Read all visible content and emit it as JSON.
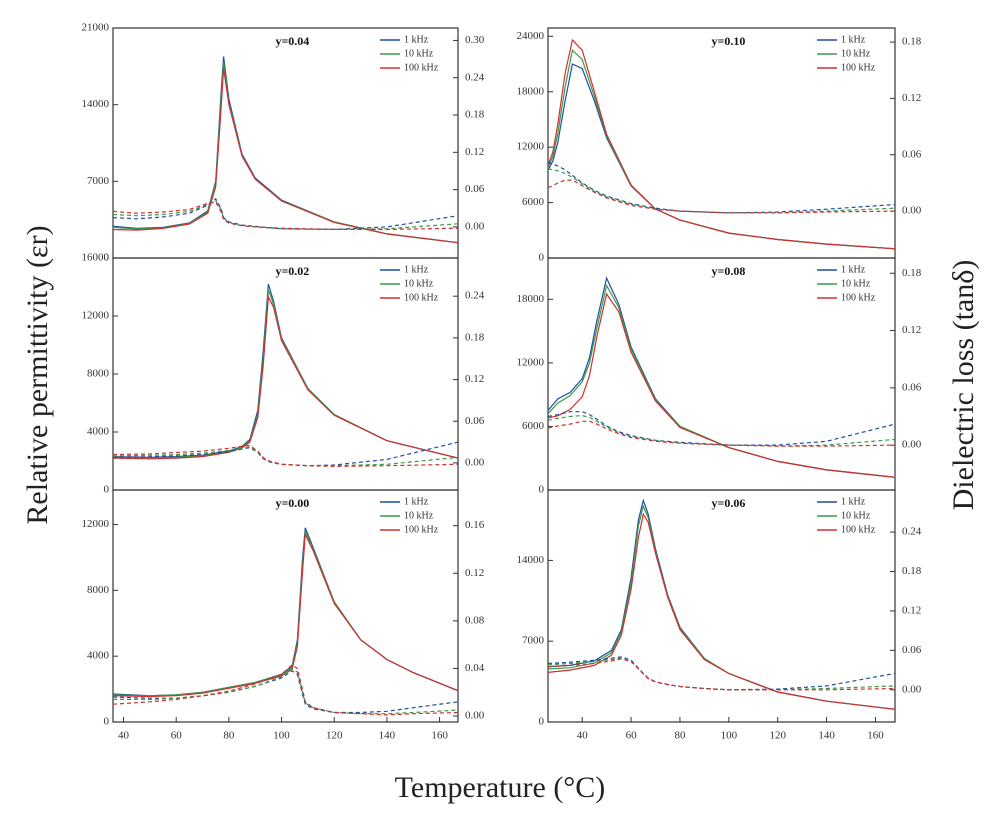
{
  "y_label": "Relative permittivity (εr)",
  "y2_label": "Dielectric loss (tanδ)",
  "x_label": "Temperature (°C)",
  "chart_data": [
    {
      "type": "line",
      "title": "y=0.04",
      "xlim": [
        36,
        167
      ],
      "ylim": [
        0,
        21000
      ],
      "yticks": [
        0,
        7000,
        14000,
        21000
      ],
      "y2lim": [
        -0.05,
        0.32
      ],
      "y2ticks": [
        {
          "value": 0,
          "label": "0.00"
        },
        0.06,
        0.12,
        0.18,
        0.24,
        {
          "value": 0.3,
          "label": "0.30"
        }
      ],
      "x": [
        36,
        45,
        55,
        65,
        72,
        75,
        77,
        78,
        80,
        85,
        90,
        100,
        120,
        140,
        167
      ],
      "series": [
        {
          "name": "1 kHz",
          "color": "#1f4fa0",
          "values": [
            2900,
            2700,
            2800,
            3200,
            4300,
            7000,
            15000,
            18400,
            14500,
            9500,
            7300,
            5300,
            3300,
            2200,
            1400
          ]
        },
        {
          "name": "10 kHz",
          "color": "#3a9a4a",
          "values": [
            2800,
            2650,
            2750,
            3150,
            4200,
            6800,
            14500,
            17900,
            14200,
            9400,
            7200,
            5250,
            3300,
            2200,
            1400
          ]
        },
        {
          "name": "100 kHz",
          "color": "#d03030",
          "values": [
            2600,
            2550,
            2700,
            3100,
            4100,
            6500,
            13500,
            17300,
            14000,
            9300,
            7200,
            5200,
            3250,
            2200,
            1400
          ]
        },
        {
          "color": "#1f4fa0",
          "axis": "y2",
          "line_style": "dashed",
          "values": [
            0.015,
            0.013,
            0.016,
            0.022,
            0.035,
            0.045,
            0.03,
            0.015,
            0.008,
            0.003,
            0.001,
            -0.003,
            -0.004,
            0.0,
            0.018
          ]
        },
        {
          "color": "#3a9a4a",
          "axis": "y2",
          "line_style": "dashed",
          "values": [
            0.02,
            0.018,
            0.02,
            0.025,
            0.036,
            0.042,
            0.028,
            0.014,
            0.007,
            0.002,
            0.0,
            -0.003,
            -0.004,
            -0.003,
            0.005
          ]
        },
        {
          "color": "#d03030",
          "axis": "y2",
          "line_style": "dashed",
          "values": [
            0.025,
            0.022,
            0.024,
            0.028,
            0.038,
            0.04,
            0.025,
            0.012,
            0.006,
            0.002,
            0.0,
            -0.002,
            -0.004,
            -0.004,
            -0.002
          ]
        }
      ]
    },
    {
      "type": "line",
      "title": "y=0.10",
      "xlim": [
        26,
        168
      ],
      "ylim": [
        0,
        24900
      ],
      "yticks": [
        0,
        6000,
        12000,
        18000,
        24000
      ],
      "y2lim": [
        -0.05,
        0.195
      ],
      "y2ticks": [
        {
          "value": 0,
          "label": "0.00"
        },
        0.06,
        0.12,
        0.18
      ],
      "x": [
        26,
        28,
        30,
        33,
        36,
        40,
        45,
        50,
        60,
        70,
        80,
        100,
        120,
        140,
        168
      ],
      "series": [
        {
          "name": "1 kHz",
          "color": "#1f4fa0",
          "values": [
            9500,
            10500,
            12500,
            17000,
            21000,
            20500,
            17000,
            13000,
            7800,
            5300,
            4100,
            2700,
            2000,
            1500,
            1000
          ]
        },
        {
          "name": "10 kHz",
          "color": "#3a9a4a",
          "values": [
            9800,
            11000,
            13500,
            18500,
            22500,
            21500,
            17500,
            13200,
            7800,
            5300,
            4100,
            2700,
            2000,
            1500,
            1000
          ]
        },
        {
          "name": "100 kHz",
          "color": "#d03030",
          "values": [
            10000,
            11500,
            14500,
            20000,
            23600,
            22500,
            18000,
            13400,
            7900,
            5300,
            4100,
            2700,
            2000,
            1500,
            1000
          ]
        },
        {
          "color": "#1f4fa0",
          "axis": "y2",
          "line_style": "dashed",
          "values": [
            0.052,
            0.05,
            0.048,
            0.044,
            0.038,
            0.03,
            0.022,
            0.016,
            0.008,
            0.003,
            0.0,
            -0.002,
            -0.001,
            0.002,
            0.007
          ]
        },
        {
          "color": "#3a9a4a",
          "axis": "y2",
          "line_style": "dashed",
          "values": [
            0.045,
            0.044,
            0.043,
            0.04,
            0.036,
            0.029,
            0.021,
            0.015,
            0.007,
            0.002,
            0.0,
            -0.002,
            -0.002,
            0.0,
            0.003
          ]
        },
        {
          "color": "#d03030",
          "axis": "y2",
          "line_style": "dashed",
          "values": [
            0.025,
            0.027,
            0.03,
            0.033,
            0.033,
            0.027,
            0.02,
            0.014,
            0.006,
            0.002,
            0.0,
            -0.002,
            -0.002,
            -0.001,
            0.0
          ]
        }
      ]
    },
    {
      "type": "line",
      "title": "y=0.02",
      "xlim": [
        36,
        167
      ],
      "ylim": [
        0,
        16000
      ],
      "yticks": [
        0,
        4000,
        8000,
        12000,
        16000
      ],
      "y2lim": [
        -0.039,
        0.295
      ],
      "y2ticks": [
        {
          "value": 0,
          "label": "0.00"
        },
        0.06,
        0.12,
        0.18,
        0.24
      ],
      "x": [
        36,
        50,
        60,
        70,
        80,
        85,
        88,
        91,
        93,
        95,
        97,
        100,
        110,
        120,
        140,
        167
      ],
      "series": [
        {
          "name": "1 kHz",
          "color": "#1f4fa0",
          "values": [
            2300,
            2250,
            2300,
            2400,
            2700,
            3000,
            3500,
            5500,
            9500,
            14200,
            13000,
            10500,
            7000,
            5200,
            3400,
            2200
          ]
        },
        {
          "name": "10 kHz",
          "color": "#3a9a4a",
          "values": [
            2250,
            2200,
            2250,
            2350,
            2650,
            2950,
            3400,
            5200,
            9000,
            13800,
            12800,
            10400,
            7000,
            5200,
            3400,
            2200
          ]
        },
        {
          "name": "100 kHz",
          "color": "#d03030",
          "values": [
            2200,
            2150,
            2200,
            2300,
            2600,
            2900,
            3300,
            5000,
            8500,
            13300,
            12600,
            10300,
            6900,
            5150,
            3400,
            2200
          ]
        },
        {
          "color": "#1f4fa0",
          "axis": "y2",
          "line_style": "dashed",
          "values": [
            0.008,
            0.009,
            0.01,
            0.012,
            0.016,
            0.02,
            0.022,
            0.015,
            0.006,
            0.002,
            0.0,
            -0.002,
            -0.004,
            -0.003,
            0.005,
            0.03
          ]
        },
        {
          "color": "#3a9a4a",
          "axis": "y2",
          "line_style": "dashed",
          "values": [
            0.01,
            0.011,
            0.012,
            0.014,
            0.018,
            0.021,
            0.023,
            0.016,
            0.007,
            0.002,
            0.0,
            -0.002,
            -0.004,
            -0.004,
            -0.002,
            0.008
          ]
        },
        {
          "color": "#d03030",
          "axis": "y2",
          "line_style": "dashed",
          "values": [
            0.012,
            0.013,
            0.015,
            0.017,
            0.021,
            0.024,
            0.025,
            0.017,
            0.008,
            0.003,
            0.001,
            -0.002,
            -0.004,
            -0.005,
            -0.004,
            -0.002
          ]
        }
      ]
    },
    {
      "type": "line",
      "title": "y=0.08",
      "xlim": [
        26,
        168
      ],
      "ylim": [
        0,
        21900
      ],
      "yticks": [
        0,
        6000,
        12000,
        18000
      ],
      "y2lim": [
        -0.047,
        0.196
      ],
      "y2ticks": [
        {
          "value": 0,
          "label": "0.00"
        },
        0.06,
        0.12,
        0.18
      ],
      "x": [
        26,
        30,
        35,
        40,
        43,
        46,
        50,
        55,
        60,
        70,
        80,
        100,
        120,
        140,
        168
      ],
      "series": [
        {
          "name": "1 kHz",
          "color": "#1f4fa0",
          "values": [
            7500,
            8600,
            9200,
            10500,
            12500,
            16000,
            20000,
            17500,
            13500,
            8600,
            6000,
            4000,
            2700,
            1900,
            1200
          ]
        },
        {
          "name": "10 kHz",
          "color": "#3a9a4a",
          "values": [
            7200,
            8200,
            8900,
            10200,
            12000,
            15300,
            19300,
            17200,
            13300,
            8500,
            6000,
            4000,
            2700,
            1900,
            1200
          ]
        },
        {
          "name": "100 kHz",
          "color": "#d03030",
          "values": [
            6800,
            7000,
            7600,
            8800,
            10800,
            14500,
            18500,
            16800,
            13000,
            8400,
            5900,
            4000,
            2700,
            1900,
            1200
          ]
        },
        {
          "color": "#1f4fa0",
          "axis": "y2",
          "line_style": "dashed",
          "values": [
            0.03,
            0.032,
            0.035,
            0.035,
            0.032,
            0.027,
            0.02,
            0.014,
            0.01,
            0.005,
            0.003,
            0.0,
            0.0,
            0.004,
            0.022
          ]
        },
        {
          "color": "#3a9a4a",
          "axis": "y2",
          "line_style": "dashed",
          "values": [
            0.026,
            0.028,
            0.03,
            0.031,
            0.029,
            0.025,
            0.019,
            0.013,
            0.009,
            0.005,
            0.002,
            0.0,
            -0.001,
            0.0,
            0.006
          ]
        },
        {
          "color": "#d03030",
          "axis": "y2",
          "line_style": "dashed",
          "values": [
            0.018,
            0.02,
            0.022,
            0.025,
            0.025,
            0.022,
            0.017,
            0.012,
            0.008,
            0.004,
            0.002,
            0.0,
            -0.001,
            -0.001,
            0.0
          ]
        }
      ]
    },
    {
      "type": "line",
      "title": "y=0.00",
      "xlim": [
        36,
        167
      ],
      "xticks": [
        40,
        60,
        80,
        100,
        120,
        140,
        160
      ],
      "ylim": [
        0,
        14100
      ],
      "yticks": [
        0,
        4000,
        8000,
        12000
      ],
      "y2lim": [
        -0.005,
        0.19
      ],
      "y2ticks": [
        {
          "value": 0,
          "label": "0.00"
        },
        0.04,
        0.08,
        0.12,
        0.16
      ],
      "x": [
        36,
        50,
        60,
        70,
        80,
        90,
        100,
        104,
        106,
        108,
        109,
        112,
        120,
        130,
        140,
        150,
        167
      ],
      "series": [
        {
          "name": "1 kHz",
          "color": "#1f4fa0",
          "values": [
            1700,
            1600,
            1650,
            1800,
            2100,
            2400,
            2900,
            3400,
            5000,
            10000,
            11800,
            10600,
            7300,
            5000,
            3800,
            3000,
            1900
          ]
        },
        {
          "name": "10 kHz",
          "color": "#3a9a4a",
          "values": [
            1650,
            1600,
            1650,
            1800,
            2100,
            2400,
            2850,
            3300,
            4800,
            9600,
            11600,
            10500,
            7300,
            5000,
            3800,
            3000,
            1900
          ]
        },
        {
          "name": "100 kHz",
          "color": "#d03030",
          "values": [
            1600,
            1550,
            1600,
            1750,
            2050,
            2350,
            2800,
            3200,
            4600,
            9200,
            11400,
            10400,
            7200,
            5000,
            3800,
            3000,
            1900
          ]
        },
        {
          "color": "#1f4fa0",
          "axis": "y2",
          "line_style": "dashed",
          "values": [
            0.016,
            0.015,
            0.015,
            0.017,
            0.02,
            0.025,
            0.032,
            0.038,
            0.035,
            0.018,
            0.01,
            0.006,
            0.003,
            0.003,
            0.004,
            0.007,
            0.012
          ]
        },
        {
          "color": "#3a9a4a",
          "axis": "y2",
          "line_style": "dashed",
          "values": [
            0.014,
            0.014,
            0.015,
            0.017,
            0.02,
            0.025,
            0.033,
            0.04,
            0.037,
            0.02,
            0.011,
            0.007,
            0.003,
            0.002,
            0.002,
            0.003,
            0.005
          ]
        },
        {
          "color": "#d03030",
          "axis": "y2",
          "line_style": "dashed",
          "values": [
            0.01,
            0.012,
            0.014,
            0.017,
            0.021,
            0.027,
            0.035,
            0.043,
            0.04,
            0.022,
            0.012,
            0.007,
            0.003,
            0.002,
            0.001,
            0.002,
            0.003
          ]
        }
      ]
    },
    {
      "type": "line",
      "title": "y=0.06",
      "xlim": [
        26,
        168
      ],
      "xticks": [
        40,
        60,
        80,
        100,
        120,
        140,
        160
      ],
      "ylim": [
        0,
        20100
      ],
      "yticks": [
        0,
        7000,
        14000
      ],
      "y2lim": [
        -0.049,
        0.304
      ],
      "y2ticks": [
        {
          "value": 0,
          "label": "0.00"
        },
        0.06,
        0.12,
        0.18,
        0.24
      ],
      "x": [
        26,
        35,
        45,
        52,
        56,
        60,
        63,
        65,
        67,
        70,
        75,
        80,
        90,
        100,
        120,
        140,
        168
      ],
      "series": [
        {
          "name": "1 kHz",
          "color": "#1f4fa0",
          "values": [
            4800,
            4900,
            5300,
            6200,
            8000,
            12500,
            17500,
            19200,
            18000,
            15000,
            11000,
            8200,
            5500,
            4200,
            2600,
            1800,
            1100
          ]
        },
        {
          "name": "10 kHz",
          "color": "#3a9a4a",
          "values": [
            4600,
            4700,
            5100,
            6000,
            7800,
            12000,
            17000,
            18700,
            17700,
            14800,
            10900,
            8100,
            5500,
            4200,
            2600,
            1800,
            1100
          ]
        },
        {
          "name": "100 kHz",
          "color": "#d03030",
          "values": [
            4300,
            4500,
            4900,
            5800,
            7500,
            11500,
            16000,
            18000,
            17300,
            14600,
            10800,
            8000,
            5400,
            4200,
            2600,
            1800,
            1100
          ]
        },
        {
          "color": "#1f4fa0",
          "axis": "y2",
          "line_style": "dashed",
          "values": [
            0.04,
            0.042,
            0.045,
            0.048,
            0.05,
            0.045,
            0.033,
            0.025,
            0.018,
            0.012,
            0.008,
            0.005,
            0.002,
            0.0,
            0.001,
            0.006,
            0.025
          ]
        },
        {
          "color": "#3a9a4a",
          "axis": "y2",
          "line_style": "dashed",
          "values": [
            0.038,
            0.04,
            0.043,
            0.046,
            0.048,
            0.043,
            0.032,
            0.024,
            0.017,
            0.012,
            0.008,
            0.005,
            0.002,
            0.0,
            0.0,
            0.002,
            0.006
          ]
        },
        {
          "color": "#d03030",
          "axis": "y2",
          "line_style": "dashed",
          "values": [
            0.035,
            0.037,
            0.04,
            0.044,
            0.047,
            0.043,
            0.032,
            0.024,
            0.017,
            0.012,
            0.008,
            0.005,
            0.002,
            0.0,
            0.0,
            0.0,
            0.002
          ]
        }
      ]
    }
  ]
}
